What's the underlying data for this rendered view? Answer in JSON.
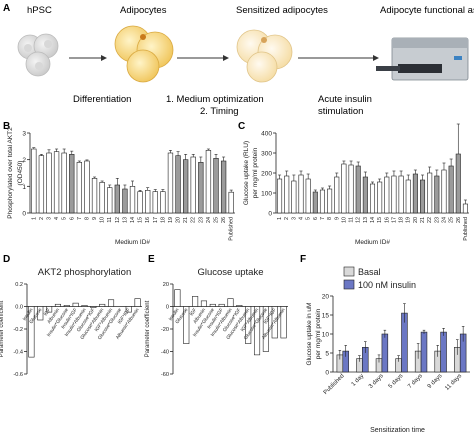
{
  "panel_a": {
    "label": "A",
    "stage1": "hPSC",
    "stage2": "Adipocytes",
    "stage3": "Sensitized adipocytes",
    "stage4": "Adipocyte functional assays",
    "step1": "Differentiation",
    "step2a": "1. Medium optimization",
    "step2b": "2. Timing",
    "step3a": "Acute insulin",
    "step3b": "stimulation"
  },
  "panels": {
    "b": "B",
    "c": "C",
    "d": "D",
    "e": "E",
    "f": "F"
  },
  "chart_data": [
    {
      "id": "B",
      "type": "bar",
      "ylabel": "Phosphorylated over total AKT2 (OD450)",
      "xlabel": "Medium ID#",
      "ylim": [
        0,
        3
      ],
      "yticks": [
        0,
        1,
        2,
        3
      ],
      "categories": [
        "1",
        "2",
        "3",
        "4",
        "5",
        "6",
        "7",
        "8",
        "9",
        "10",
        "11",
        "12",
        "13",
        "14",
        "15",
        "16",
        "17",
        "18",
        "19",
        "20",
        "21",
        "22",
        "23",
        "24",
        "25",
        "26",
        "Published"
      ],
      "xtick_labels": [
        "1",
        "2",
        "3",
        "4",
        "5",
        "6",
        "7",
        "8",
        "9",
        "10",
        "11",
        "12",
        "13",
        "14",
        "15",
        "16",
        "17",
        "18",
        "19",
        "20",
        "21",
        "22",
        "23",
        "24",
        "25",
        "26",
        "Published"
      ],
      "values": [
        2.4,
        2.15,
        2.25,
        2.3,
        2.25,
        2.2,
        1.9,
        1.95,
        1.3,
        1.15,
        0.95,
        1.05,
        0.9,
        1.0,
        0.8,
        0.85,
        0.8,
        0.8,
        2.25,
        2.15,
        2.0,
        2.1,
        1.9,
        2.35,
        2.05,
        1.95,
        0.78
      ],
      "errors": [
        0.05,
        0.05,
        0.12,
        0.1,
        0.15,
        0.12,
        0.05,
        0.04,
        0.05,
        0.05,
        0.1,
        0.25,
        0.15,
        0.2,
        0.05,
        0.1,
        0.08,
        0.08,
        0.1,
        0.15,
        0.2,
        0.1,
        0.2,
        0.05,
        0.15,
        0.15,
        0.08
      ],
      "gray_indices": [
        5,
        11,
        12,
        19,
        20,
        22,
        24,
        25
      ]
    },
    {
      "id": "C",
      "type": "bar",
      "ylabel": "Glucose uptake (RLU) per mg/ml protein",
      "xlabel": "Medium ID#",
      "ylim": [
        0,
        400
      ],
      "yticks": [
        0,
        100,
        200,
        300,
        400
      ],
      "categories": [
        "1",
        "2",
        "3",
        "4",
        "5",
        "6",
        "7",
        "8",
        "9",
        "10",
        "11",
        "12",
        "13",
        "14",
        "15",
        "16",
        "17",
        "18",
        "19",
        "20",
        "21",
        "22",
        "23",
        "24",
        "25",
        "26",
        "Published"
      ],
      "xtick_labels": [
        "1",
        "2",
        "3",
        "4",
        "5",
        "6",
        "7",
        "8",
        "9",
        "10",
        "11",
        "12",
        "13",
        "14",
        "15",
        "16",
        "17",
        "18",
        "19",
        "20",
        "21",
        "22",
        "23",
        "24",
        "25",
        "26",
        "Published"
      ],
      "values": [
        170,
        185,
        160,
        190,
        170,
        105,
        115,
        120,
        180,
        245,
        240,
        235,
        180,
        145,
        155,
        180,
        185,
        185,
        165,
        195,
        165,
        200,
        185,
        215,
        235,
        295,
        45
      ],
      "errors": [
        20,
        25,
        30,
        20,
        25,
        10,
        10,
        15,
        20,
        15,
        20,
        20,
        25,
        10,
        15,
        20,
        25,
        25,
        25,
        20,
        25,
        30,
        30,
        35,
        35,
        150,
        20
      ],
      "gray_indices": [
        5,
        11,
        12,
        19,
        20,
        22,
        24,
        25
      ]
    },
    {
      "id": "D",
      "type": "bar",
      "title": "AKT2 phosphorylation",
      "ylabel": "Parameter coefficient",
      "ylim": [
        -0.6,
        0.2
      ],
      "yticks": [
        0.2,
        0.0,
        -0.2,
        -0.4,
        -0.6
      ],
      "ytick_labels": [
        "0.2",
        "0.0",
        "-0.2",
        "-0.4",
        "-0.6"
      ],
      "categories": [
        "Insulin",
        "Glucose",
        "IGF",
        "Albumin",
        "Insulin*Glucose",
        "Insulin*IGF",
        "Insulin*Albumin",
        "Glucose*IGF",
        "Glucose*Albumin",
        "IGF*Albumin",
        "Glucose*Glucose",
        "IGF*IGF",
        "Albumin*Albumin"
      ],
      "values": [
        -0.45,
        -0.12,
        -0.05,
        0.02,
        0.01,
        0.03,
        0.01,
        -0.01,
        0.02,
        0.06,
        0.0,
        -0.05,
        0.07
      ]
    },
    {
      "id": "E",
      "type": "bar",
      "title": "Glucose uptake",
      "ylabel": "Parameter coefficient",
      "ylim": [
        -60,
        20
      ],
      "yticks": [
        20,
        0,
        -20,
        -40,
        -60
      ],
      "ytick_labels": [
        "20",
        "0",
        "-20",
        "-40",
        "-60"
      ],
      "categories": [
        "Insulin",
        "Glucose",
        "IGF",
        "Albumin",
        "Insulin*Glucose",
        "Insulin*IGF",
        "Insulin*Albumin",
        "Glucose*IGF",
        "Glucose*Albumin",
        "IGF*Albumin",
        "Glucose*Glucose",
        "IGF*IGF",
        "Albumin*Albumin"
      ],
      "values": [
        15,
        -33,
        9,
        5,
        2,
        2,
        7,
        1,
        -33,
        -43,
        -40,
        -28,
        -28
      ]
    },
    {
      "id": "F",
      "type": "bar",
      "ylabel": "Glucose uptake in uM per mg/ml protein",
      "xlabel": "Sensitization time",
      "ylim": [
        0,
        20
      ],
      "yticks": [
        0,
        5,
        10,
        15,
        20
      ],
      "categories": [
        "Published",
        "1 day",
        "3 days",
        "5 days",
        "7 days",
        "9 days",
        "11 days"
      ],
      "series": [
        {
          "name": "Basal",
          "color": "#d9d9d9",
          "values": [
            4.5,
            3.5,
            3.5,
            3.5,
            5.5,
            5.5,
            6.5
          ],
          "errors": [
            1.2,
            0.8,
            1.0,
            0.8,
            2.0,
            1.5,
            2.0
          ]
        },
        {
          "name": "100 nM insulin",
          "color": "#6b77c4",
          "values": [
            5.5,
            6.5,
            10.0,
            15.5,
            10.5,
            10.5,
            10.0
          ],
          "errors": [
            1.5,
            1.5,
            1.0,
            2.5,
            0.5,
            1.0,
            2.0
          ]
        }
      ]
    }
  ]
}
